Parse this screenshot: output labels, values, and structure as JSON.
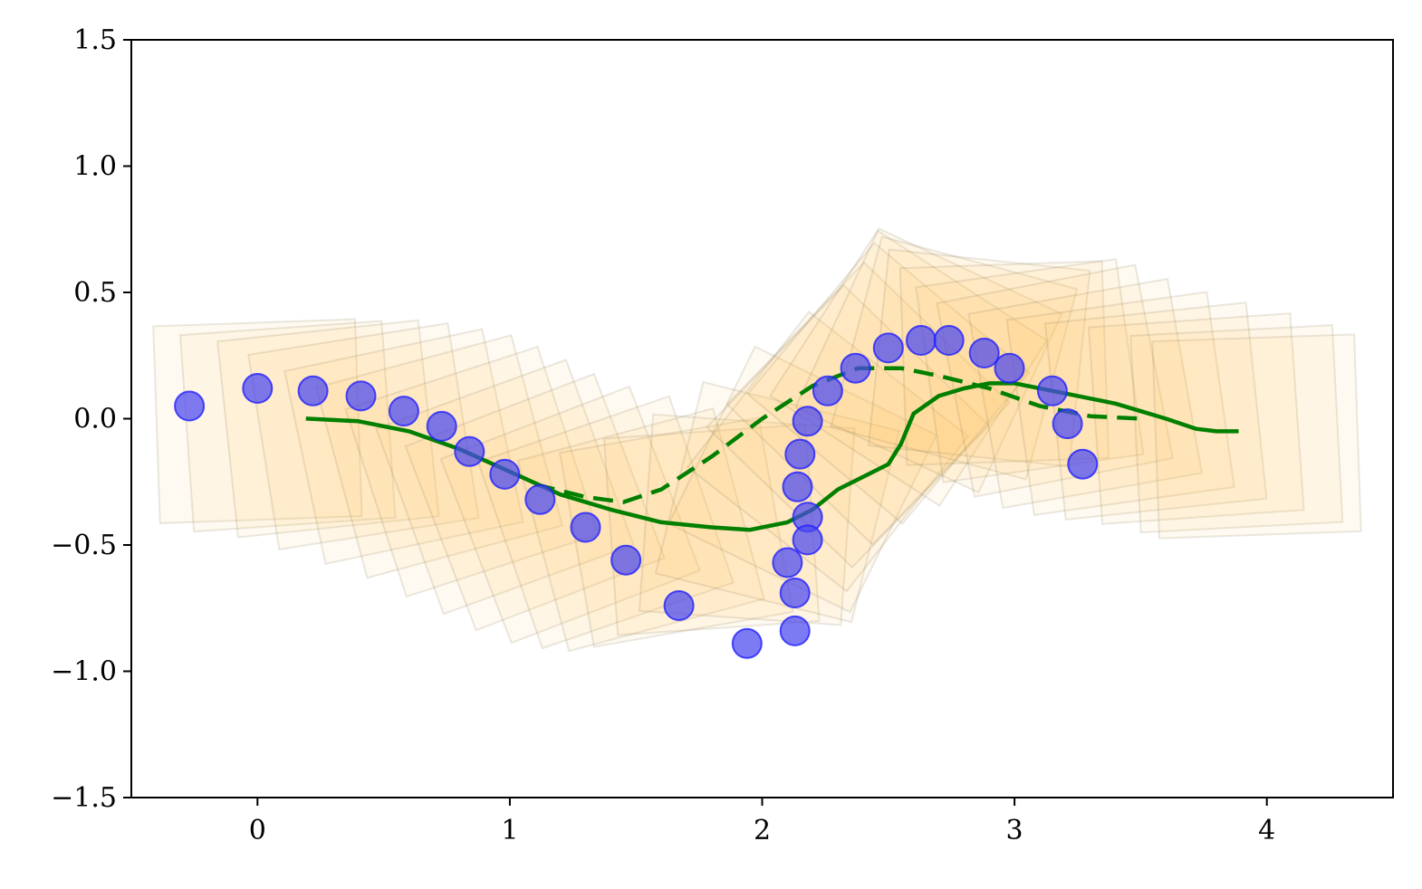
{
  "chart_data": {
    "type": "scatter",
    "title": "",
    "xlabel": "",
    "ylabel": "",
    "xlim": [
      -0.5,
      4.5
    ],
    "ylim": [
      -1.5,
      1.5
    ],
    "grid": false,
    "x_ticks": [
      0,
      1,
      2,
      3,
      4
    ],
    "x_tick_labels": [
      "0",
      "1",
      "2",
      "3",
      "4"
    ],
    "y_ticks": [
      -1.5,
      -1.0,
      -0.5,
      0.0,
      0.5,
      1.0,
      1.5
    ],
    "y_tick_labels": [
      "−1.5",
      "−1.0",
      "−0.5",
      "0.0",
      "0.5",
      "1.0",
      "1.5"
    ],
    "colors": {
      "points": "#4b48f0",
      "point_edge": "#2020ff",
      "line": "#007f00",
      "boxes_fill": "#ffc04d",
      "boxes_edge": "#8a8060"
    },
    "series": [
      {
        "kind": "scatter",
        "x": [
          -0.27,
          0.0,
          0.22,
          0.41,
          0.58,
          0.73,
          0.84,
          0.98,
          1.12,
          1.3,
          1.46,
          1.67,
          1.94,
          2.1,
          2.13,
          2.13,
          2.14,
          2.15,
          2.18,
          2.18,
          2.18,
          2.26,
          2.37,
          2.5,
          2.63,
          2.74,
          2.88,
          2.98,
          3.15,
          3.21,
          3.27
        ],
        "y": [
          0.05,
          0.12,
          0.11,
          0.09,
          0.03,
          -0.03,
          -0.13,
          -0.22,
          -0.32,
          -0.43,
          -0.56,
          -0.74,
          -0.89,
          -0.57,
          -0.84,
          -0.69,
          -0.27,
          -0.14,
          -0.01,
          -0.39,
          -0.48,
          0.11,
          0.2,
          0.28,
          0.31,
          0.31,
          0.26,
          0.2,
          0.11,
          -0.02,
          -0.18
        ]
      },
      {
        "kind": "line-solid",
        "x": [
          0.2,
          0.4,
          0.6,
          0.8,
          1.0,
          1.2,
          1.4,
          1.6,
          1.8,
          1.95,
          2.1,
          2.2,
          2.3,
          2.4,
          2.5,
          2.55,
          2.6,
          2.7,
          2.8,
          2.9,
          3.0,
          3.2,
          3.4,
          3.6,
          3.72,
          3.8,
          3.88
        ],
        "y": [
          0.0,
          -0.01,
          -0.05,
          -0.12,
          -0.21,
          -0.3,
          -0.36,
          -0.41,
          -0.43,
          -0.44,
          -0.41,
          -0.36,
          -0.28,
          -0.23,
          -0.18,
          -0.1,
          0.02,
          0.09,
          0.12,
          0.14,
          0.14,
          0.1,
          0.06,
          0.0,
          -0.04,
          -0.05,
          -0.05
        ]
      },
      {
        "kind": "line-dashed",
        "x": [
          1.1,
          1.3,
          1.45,
          1.6,
          1.8,
          2.0,
          2.2,
          2.38,
          2.55,
          2.7,
          2.9,
          3.1,
          3.3,
          3.5
        ],
        "y": [
          -0.26,
          -0.31,
          -0.33,
          -0.28,
          -0.15,
          0.0,
          0.13,
          0.2,
          0.2,
          0.17,
          0.12,
          0.05,
          0.01,
          0.0
        ]
      },
      {
        "kind": "rotated-boxes",
        "width": 0.8,
        "height": 0.78,
        "cx": [
          0.0,
          0.12,
          0.28,
          0.42,
          0.58,
          0.72,
          0.85,
          0.98,
          1.1,
          1.24,
          1.38,
          1.52,
          1.66,
          1.8,
          1.94,
          2.06,
          2.16,
          2.26,
          2.34,
          2.42,
          2.5,
          2.58,
          2.66,
          2.76,
          2.86,
          2.96,
          3.06,
          3.16,
          3.28,
          3.42,
          3.56,
          3.72,
          3.88,
          3.96
        ],
        "cy": [
          -0.01,
          -0.03,
          -0.04,
          -0.07,
          -0.11,
          -0.15,
          -0.21,
          -0.27,
          -0.33,
          -0.38,
          -0.41,
          -0.44,
          -0.45,
          -0.44,
          -0.4,
          -0.33,
          -0.24,
          -0.13,
          -0.03,
          0.06,
          0.14,
          0.2,
          0.23,
          0.24,
          0.24,
          0.22,
          0.19,
          0.15,
          0.1,
          0.06,
          0.03,
          0.0,
          -0.04,
          -0.07
        ],
        "angle_deg": [
          2,
          4,
          6,
          9,
          12,
          15,
          18,
          20,
          21,
          21,
          19,
          15,
          10,
          4,
          -4,
          -14,
          -26,
          -38,
          -44,
          -44,
          -40,
          -33,
          -25,
          -15,
          -6,
          2,
          8,
          11,
          10,
          8,
          6,
          4,
          3,
          2
        ]
      }
    ]
  }
}
